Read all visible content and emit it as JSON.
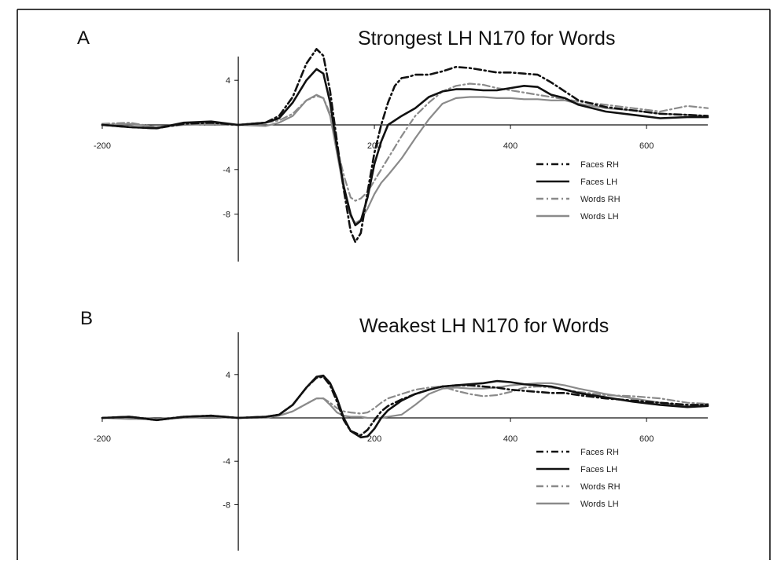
{
  "colors": {
    "faces": "#111111",
    "words": "#8a8a8a",
    "axis": "#111111",
    "frame": "#000000"
  },
  "chart_data": [
    {
      "type": "line",
      "panel_letter": "A",
      "title": "Strongest LH N170 for Words",
      "xlabel": "",
      "ylabel": "",
      "xlim": [
        -200,
        690
      ],
      "ylim": [
        -12,
        7
      ],
      "x_ticks": [
        -200,
        200,
        400,
        600
      ],
      "y_ticks": [
        4,
        -4,
        -8
      ],
      "grid": false,
      "legend_position": "lower-right",
      "series": [
        {
          "name": "Faces RH",
          "style": "dashdot",
          "color": "#111111",
          "x": [
            -200,
            -160,
            -120,
            -80,
            -40,
            0,
            40,
            60,
            80,
            100,
            115,
            125,
            135,
            145,
            155,
            165,
            172,
            180,
            190,
            200,
            210,
            220,
            230,
            240,
            250,
            260,
            270,
            280,
            300,
            320,
            340,
            360,
            380,
            400,
            420,
            440,
            460,
            480,
            500,
            540,
            580,
            620,
            660,
            690
          ],
          "y": [
            0,
            -0.2,
            -0.3,
            0.1,
            0.2,
            0,
            0.2,
            0.8,
            2.5,
            5.5,
            6.8,
            6.2,
            3.0,
            -1.5,
            -5.8,
            -9.5,
            -10.5,
            -9.7,
            -6.0,
            -2.5,
            0,
            2.0,
            3.5,
            4.2,
            4.3,
            4.5,
            4.5,
            4.5,
            4.8,
            5.2,
            5.1,
            4.9,
            4.7,
            4.7,
            4.6,
            4.5,
            3.8,
            3.0,
            2.2,
            1.6,
            1.3,
            1.0,
            0.9,
            0.8
          ]
        },
        {
          "name": "Faces LH",
          "style": "solid",
          "color": "#111111",
          "x": [
            -200,
            -160,
            -120,
            -80,
            -40,
            0,
            40,
            60,
            80,
            100,
            115,
            125,
            135,
            145,
            155,
            165,
            172,
            180,
            190,
            200,
            210,
            220,
            240,
            260,
            280,
            300,
            320,
            340,
            360,
            380,
            400,
            420,
            440,
            460,
            480,
            500,
            540,
            580,
            620,
            660,
            690
          ],
          "y": [
            0,
            -0.2,
            -0.3,
            0.2,
            0.3,
            0,
            0.2,
            0.6,
            2.0,
            4.0,
            5.0,
            4.6,
            2.0,
            -2.0,
            -5.5,
            -8.0,
            -9.0,
            -8.6,
            -6.5,
            -3.5,
            -1.5,
            0,
            0.8,
            1.5,
            2.5,
            3.0,
            3.2,
            3.2,
            3.1,
            3.1,
            3.3,
            3.5,
            3.4,
            2.7,
            2.4,
            1.8,
            1.2,
            0.9,
            0.6,
            0.7,
            0.7
          ]
        },
        {
          "name": "Words RH",
          "style": "dashdot",
          "color": "#8a8a8a",
          "x": [
            -200,
            -160,
            -120,
            -80,
            -40,
            0,
            40,
            60,
            80,
            100,
            115,
            125,
            135,
            145,
            155,
            165,
            172,
            180,
            190,
            200,
            210,
            220,
            240,
            260,
            280,
            300,
            320,
            340,
            360,
            380,
            400,
            420,
            440,
            460,
            480,
            500,
            540,
            580,
            620,
            660,
            690
          ],
          "y": [
            0.1,
            0.2,
            -0.2,
            0.1,
            0,
            0,
            0.2,
            0.4,
            1.0,
            2.2,
            2.6,
            2.4,
            1.0,
            -2.0,
            -4.5,
            -6.5,
            -6.8,
            -6.6,
            -6.0,
            -5.0,
            -4.0,
            -3.0,
            -1.0,
            0.8,
            2.0,
            3.0,
            3.5,
            3.7,
            3.6,
            3.3,
            3.1,
            2.9,
            2.7,
            2.5,
            2.3,
            2.1,
            1.8,
            1.5,
            1.2,
            1.7,
            1.5
          ]
        },
        {
          "name": "Words LH",
          "style": "solid",
          "color": "#8a8a8a",
          "x": [
            -200,
            -160,
            -120,
            -80,
            -40,
            0,
            40,
            60,
            80,
            100,
            115,
            125,
            135,
            145,
            155,
            165,
            172,
            180,
            190,
            200,
            210,
            220,
            240,
            260,
            280,
            300,
            320,
            340,
            360,
            380,
            400,
            420,
            440,
            460,
            480,
            500,
            540,
            580,
            620,
            660,
            690
          ],
          "y": [
            0,
            0.1,
            -0.2,
            0,
            0.1,
            0,
            -0.1,
            0.2,
            0.8,
            2.2,
            2.7,
            2.4,
            0.8,
            -2.5,
            -5.8,
            -8.2,
            -8.8,
            -8.5,
            -7.5,
            -6.2,
            -5.2,
            -4.5,
            -3.0,
            -1.2,
            0.5,
            1.9,
            2.4,
            2.5,
            2.5,
            2.4,
            2.4,
            2.3,
            2.3,
            2.2,
            2.2,
            1.9,
            1.5,
            1.3,
            1.0,
            0.9,
            0.8
          ]
        }
      ]
    },
    {
      "type": "line",
      "panel_letter": "B",
      "title": "Weakest LH N170 for Words",
      "xlabel": "",
      "ylabel": "",
      "xlim": [
        -200,
        690
      ],
      "ylim": [
        -12,
        7
      ],
      "x_ticks": [
        -200,
        200,
        400,
        600
      ],
      "y_ticks": [
        4,
        -4,
        -8
      ],
      "grid": false,
      "legend_position": "lower-right",
      "series": [
        {
          "name": "Faces RH",
          "style": "dashdot",
          "color": "#111111",
          "x": [
            -200,
            -160,
            -120,
            -80,
            -40,
            0,
            40,
            60,
            80,
            100,
            115,
            125,
            135,
            145,
            155,
            165,
            180,
            190,
            200,
            210,
            220,
            240,
            260,
            280,
            300,
            320,
            340,
            360,
            380,
            400,
            420,
            440,
            460,
            480,
            500,
            540,
            580,
            620,
            660,
            690
          ],
          "y": [
            0,
            0.1,
            -0.2,
            0.1,
            0.2,
            0,
            0.1,
            0.3,
            1.2,
            2.8,
            3.7,
            3.8,
            3.0,
            1.5,
            -0.2,
            -1.2,
            -1.6,
            -1.1,
            -0.2,
            0.6,
            1.1,
            1.7,
            2.2,
            2.6,
            2.9,
            3.0,
            3.0,
            2.9,
            2.8,
            2.6,
            2.5,
            2.4,
            2.3,
            2.3,
            2.1,
            1.8,
            1.6,
            1.4,
            1.2,
            1.2
          ]
        },
        {
          "name": "Faces LH",
          "style": "solid",
          "color": "#111111",
          "x": [
            -200,
            -160,
            -120,
            -80,
            -40,
            0,
            40,
            60,
            80,
            100,
            115,
            125,
            135,
            145,
            155,
            165,
            180,
            190,
            200,
            210,
            220,
            240,
            260,
            280,
            300,
            320,
            340,
            360,
            380,
            400,
            420,
            440,
            460,
            480,
            500,
            540,
            580,
            620,
            660,
            690
          ],
          "y": [
            0,
            0.1,
            -0.2,
            0.1,
            0.2,
            0,
            0.1,
            0.3,
            1.2,
            2.8,
            3.8,
            3.9,
            3.2,
            1.8,
            0,
            -1.2,
            -1.8,
            -1.7,
            -1.0,
            0,
            0.7,
            1.6,
            2.2,
            2.6,
            2.9,
            3.0,
            3.1,
            3.2,
            3.4,
            3.3,
            3.1,
            3.0,
            2.9,
            2.6,
            2.3,
            1.9,
            1.5,
            1.2,
            1.0,
            1.1
          ]
        },
        {
          "name": "Words RH",
          "style": "dashdot",
          "color": "#8a8a8a",
          "x": [
            -200,
            -160,
            -120,
            -80,
            -40,
            0,
            40,
            60,
            80,
            100,
            115,
            125,
            135,
            145,
            155,
            165,
            180,
            190,
            200,
            210,
            220,
            240,
            260,
            280,
            300,
            320,
            340,
            360,
            380,
            400,
            420,
            440,
            460,
            480,
            500,
            540,
            580,
            620,
            660,
            690
          ],
          "y": [
            0,
            0.1,
            -0.1,
            0.1,
            0.1,
            0,
            0.1,
            0.2,
            0.6,
            1.3,
            1.8,
            1.8,
            1.4,
            0.9,
            0.6,
            0.5,
            0.4,
            0.5,
            0.9,
            1.4,
            1.8,
            2.2,
            2.6,
            2.8,
            2.9,
            2.5,
            2.2,
            2.0,
            2.1,
            2.4,
            2.8,
            2.9,
            2.8,
            2.6,
            2.4,
            2.1,
            2.0,
            1.8,
            1.4,
            1.3
          ]
        },
        {
          "name": "Words LH",
          "style": "solid",
          "color": "#8a8a8a",
          "x": [
            -200,
            -160,
            -120,
            -80,
            -40,
            0,
            40,
            60,
            80,
            100,
            115,
            125,
            135,
            145,
            155,
            165,
            180,
            190,
            200,
            210,
            220,
            240,
            260,
            280,
            300,
            320,
            340,
            360,
            380,
            400,
            420,
            440,
            460,
            480,
            500,
            540,
            580,
            620,
            660,
            690
          ],
          "y": [
            0,
            -0.1,
            -0.1,
            0,
            0.1,
            0,
            0,
            0.2,
            0.6,
            1.3,
            1.8,
            1.8,
            1.2,
            0.5,
            0.2,
            0.1,
            0.1,
            0,
            0,
            0,
            0.1,
            0.3,
            1.2,
            2.2,
            2.7,
            2.8,
            2.7,
            2.7,
            2.8,
            3.0,
            3.1,
            3.2,
            3.2,
            3.0,
            2.7,
            2.2,
            1.8,
            1.4,
            1.1,
            1.3
          ]
        }
      ]
    }
  ]
}
